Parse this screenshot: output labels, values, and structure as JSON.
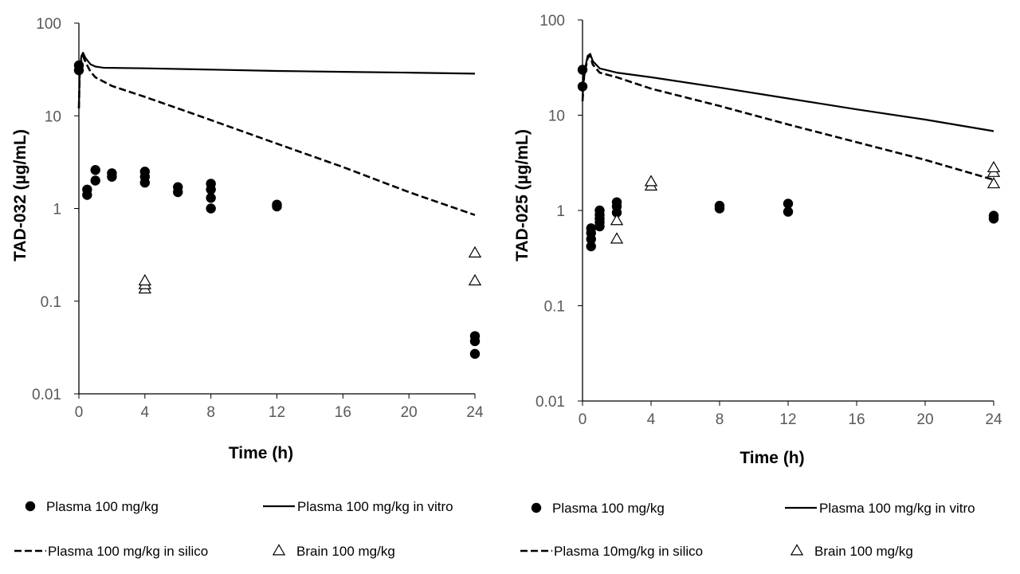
{
  "chart_data": [
    {
      "type": "scatter",
      "xlabel": "Time (h)",
      "ylabel": "TAD-032 (µg/mL)",
      "xlim": [
        0,
        24
      ],
      "xticks": [
        0,
        4,
        8,
        12,
        16,
        20,
        24
      ],
      "ylim": [
        0.01,
        100
      ],
      "yscale": "log",
      "yticks": [
        {
          "value": 0.01,
          "label": "0.01"
        },
        {
          "value": 0.1,
          "label": "0.1"
        },
        {
          "value": 1,
          "label": "1"
        },
        {
          "value": 10,
          "label": "10"
        },
        {
          "value": 100,
          "label": "100"
        }
      ],
      "grid": false,
      "legend": "bottom",
      "series": [
        {
          "name": "Plasma 100 mg/kg",
          "kind": "scatter",
          "marker": "filled-circle",
          "points": [
            [
              0,
              31
            ],
            [
              0,
              35
            ],
            [
              0.5,
              1.4
            ],
            [
              0.5,
              1.6
            ],
            [
              1,
              2.0
            ],
            [
              1,
              2.6
            ],
            [
              2,
              2.2
            ],
            [
              2,
              2.4
            ],
            [
              4,
              1.9
            ],
            [
              4,
              2.2
            ],
            [
              4,
              2.5
            ],
            [
              6,
              1.5
            ],
            [
              6,
              1.7
            ],
            [
              8,
              1.0
            ],
            [
              8,
              1.3
            ],
            [
              8,
              1.6
            ],
            [
              8,
              1.85
            ],
            [
              12,
              1.05
            ],
            [
              12,
              1.1
            ],
            [
              24,
              0.027
            ],
            [
              24,
              0.037
            ],
            [
              24,
              0.042
            ]
          ]
        },
        {
          "name": "Plasma 100 mg/kg in vitro",
          "kind": "line",
          "dash": "solid",
          "points": [
            [
              0,
              12
            ],
            [
              0.05,
              30
            ],
            [
              0.15,
              44
            ],
            [
              0.25,
              48
            ],
            [
              0.4,
              42
            ],
            [
              0.7,
              36
            ],
            [
              1,
              34
            ],
            [
              1.5,
              33
            ],
            [
              4,
              32.5
            ],
            [
              8,
              31.5
            ],
            [
              12,
              30.5
            ],
            [
              16,
              29.8
            ],
            [
              20,
              29.2
            ],
            [
              24,
              28.5
            ]
          ]
        },
        {
          "name": "Plasma 100 mg/kg in silico",
          "kind": "line",
          "dash": "dashed",
          "points": [
            [
              0,
              12
            ],
            [
              0.05,
              28
            ],
            [
              0.15,
              40
            ],
            [
              0.25,
              44
            ],
            [
              0.4,
              38
            ],
            [
              0.7,
              30
            ],
            [
              1,
              26
            ],
            [
              2,
              21
            ],
            [
              4,
              16
            ],
            [
              6,
              12
            ],
            [
              8,
              9
            ],
            [
              12,
              5
            ],
            [
              16,
              2.8
            ],
            [
              20,
              1.5
            ],
            [
              24,
              0.85
            ]
          ]
        },
        {
          "name": "Brain 100 mg/kg",
          "kind": "scatter",
          "marker": "open-triangle",
          "points": [
            [
              4,
              0.135
            ],
            [
              4,
              0.15
            ],
            [
              4,
              0.165
            ],
            [
              24,
              0.165
            ],
            [
              24,
              0.33
            ]
          ]
        }
      ]
    },
    {
      "type": "scatter",
      "xlabel": "Time (h)",
      "ylabel": "TAD-025 (µg/mL)",
      "xlim": [
        0,
        24
      ],
      "xticks": [
        0,
        4,
        8,
        12,
        16,
        20,
        24
      ],
      "ylim": [
        0.01,
        100
      ],
      "yscale": "log",
      "yticks": [
        {
          "value": 0.01,
          "label": "0.01"
        },
        {
          "value": 0.1,
          "label": "0.1"
        },
        {
          "value": 1,
          "label": "1"
        },
        {
          "value": 10,
          "label": "10"
        },
        {
          "value": 100,
          "label": "100"
        }
      ],
      "grid": false,
      "legend": "bottom",
      "series": [
        {
          "name": "Plasma 100 mg/kg",
          "kind": "scatter",
          "marker": "filled-circle",
          "points": [
            [
              0,
              20
            ],
            [
              0,
              30
            ],
            [
              0.5,
              0.42
            ],
            [
              0.5,
              0.5
            ],
            [
              0.5,
              0.58
            ],
            [
              0.5,
              0.65
            ],
            [
              1,
              0.68
            ],
            [
              1,
              0.75
            ],
            [
              1,
              0.82
            ],
            [
              1,
              0.9
            ],
            [
              1,
              1.0
            ],
            [
              2,
              0.95
            ],
            [
              2,
              1.1
            ],
            [
              2,
              1.22
            ],
            [
              8,
              1.05
            ],
            [
              8,
              1.12
            ],
            [
              12,
              0.97
            ],
            [
              12,
              1.18
            ],
            [
              24,
              0.82
            ],
            [
              24,
              0.88
            ]
          ]
        },
        {
          "name": "Plasma 100 mg/kg in vitro",
          "kind": "line",
          "dash": "solid",
          "points": [
            [
              0,
              15
            ],
            [
              0.1,
              28
            ],
            [
              0.3,
              42
            ],
            [
              0.45,
              44
            ],
            [
              0.6,
              37
            ],
            [
              1,
              31
            ],
            [
              2,
              28
            ],
            [
              4,
              25
            ],
            [
              8,
              19.5
            ],
            [
              12,
              15
            ],
            [
              16,
              11.5
            ],
            [
              20,
              9
            ],
            [
              24,
              6.8
            ]
          ]
        },
        {
          "name": "Plasma 10mg/kg in silico",
          "kind": "line",
          "dash": "dashed",
          "points": [
            [
              0,
              14
            ],
            [
              0.1,
              26
            ],
            [
              0.3,
              40
            ],
            [
              0.45,
              42
            ],
            [
              0.6,
              34
            ],
            [
              1,
              28
            ],
            [
              2,
              25
            ],
            [
              4,
              19
            ],
            [
              8,
              12.5
            ],
            [
              12,
              8
            ],
            [
              16,
              5.2
            ],
            [
              20,
              3.4
            ],
            [
              24,
              2.1
            ]
          ]
        },
        {
          "name": "Brain 100 mg/kg",
          "kind": "scatter",
          "marker": "open-triangle",
          "points": [
            [
              2,
              0.5
            ],
            [
              2,
              0.78
            ],
            [
              4,
              1.8
            ],
            [
              4,
              2.0
            ],
            [
              24,
              1.9
            ],
            [
              24,
              2.5
            ],
            [
              24,
              2.8
            ]
          ]
        }
      ]
    }
  ],
  "legends": [
    {
      "items": [
        {
          "label": "Plasma 100 mg/kg",
          "symbol": "filled-circle"
        },
        {
          "label": "Plasma 100 mg/kg in vitro",
          "symbol": "solid-line"
        },
        {
          "label": "Plasma 100 mg/kg in silico",
          "symbol": "dashed-line"
        },
        {
          "label": "Brain 100 mg/kg",
          "symbol": "open-triangle"
        }
      ]
    },
    {
      "items": [
        {
          "label": "Plasma 100 mg/kg",
          "symbol": "filled-circle"
        },
        {
          "label": "Plasma 100 mg/kg in vitro",
          "symbol": "solid-line"
        },
        {
          "label": "Plasma 10mg/kg in silico",
          "symbol": "dashed-line"
        },
        {
          "label": "Brain 100 mg/kg",
          "symbol": "open-triangle"
        }
      ]
    }
  ],
  "colors": {
    "marks": "#000000",
    "tick_text": "#595959"
  }
}
